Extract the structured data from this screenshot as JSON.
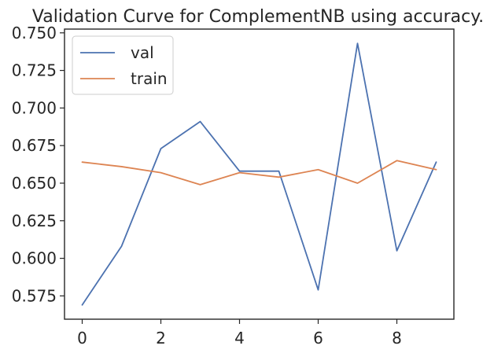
{
  "chart_data": {
    "type": "line",
    "title": "Validation Curve for ComplementNB using accuracy.",
    "xlabel": "",
    "ylabel": "",
    "x": [
      0,
      1,
      2,
      3,
      4,
      5,
      6,
      7,
      8,
      9
    ],
    "xlim": [
      -0.45,
      9.45
    ],
    "ylim": [
      0.5595,
      0.7525
    ],
    "x_ticks": [
      0,
      2,
      4,
      6,
      8
    ],
    "x_tick_labels": [
      "0",
      "2",
      "4",
      "6",
      "8"
    ],
    "y_ticks": [
      0.575,
      0.6,
      0.625,
      0.65,
      0.675,
      0.7,
      0.725,
      0.75
    ],
    "y_tick_labels": [
      "0.575",
      "0.600",
      "0.625",
      "0.650",
      "0.675",
      "0.700",
      "0.725",
      "0.750"
    ],
    "grid": false,
    "legend_position": "top-left",
    "series": [
      {
        "name": "val",
        "color": "#4c72b0",
        "values": [
          0.569,
          0.608,
          0.673,
          0.691,
          0.658,
          0.658,
          0.579,
          0.743,
          0.605,
          0.664
        ]
      },
      {
        "name": "train",
        "color": "#dd8452",
        "values": [
          0.664,
          0.661,
          0.657,
          0.649,
          0.657,
          0.654,
          0.659,
          0.65,
          0.665,
          0.659
        ]
      }
    ]
  }
}
